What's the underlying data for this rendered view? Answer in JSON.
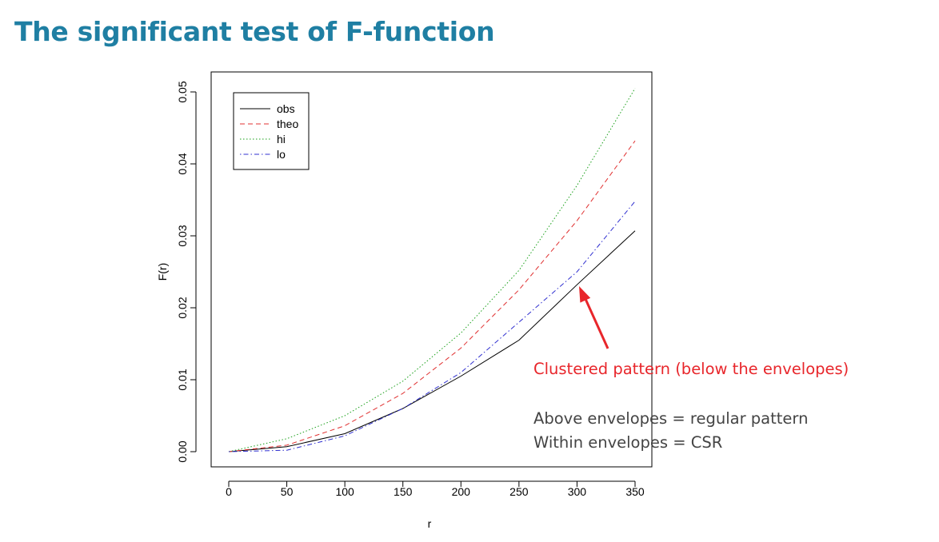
{
  "slide": {
    "title": "The significant test of F-function"
  },
  "annotations": {
    "clustered": "Clustered pattern (below the envelopes)",
    "clustered_color": "#e8262b",
    "regular": "Above envelopes = regular pattern",
    "csr": "Within envelopes = CSR",
    "text_color": "#444444",
    "arrow_color": "#e8262b"
  },
  "chart_data": {
    "type": "line",
    "title": "",
    "xlabel": "r",
    "ylabel": "F(r)",
    "xlim": [
      0,
      350
    ],
    "ylim": [
      0,
      0.05
    ],
    "x_ticks": [
      0,
      50,
      100,
      150,
      200,
      250,
      300,
      350
    ],
    "y_ticks": [
      0.0,
      0.01,
      0.02,
      0.03,
      0.04,
      0.05
    ],
    "y_tick_labels": [
      "0.00",
      "0.01",
      "0.02",
      "0.03",
      "0.04",
      "0.05"
    ],
    "legend_position": "top-left",
    "x": [
      0,
      50,
      100,
      150,
      200,
      250,
      300,
      350
    ],
    "series": [
      {
        "name": "obs",
        "color": "#000000",
        "dash": "solid",
        "values": [
          0.0,
          0.0007,
          0.0025,
          0.006,
          0.0105,
          0.0155,
          0.0232,
          0.0307
        ]
      },
      {
        "name": "theo",
        "color": "#e03030",
        "dash": "dashed",
        "values": [
          0.0,
          0.0009,
          0.0036,
          0.0081,
          0.0144,
          0.0225,
          0.0321,
          0.0432
        ]
      },
      {
        "name": "hi",
        "color": "#1aa01a",
        "dash": "dotted",
        "values": [
          0.0,
          0.0018,
          0.005,
          0.0098,
          0.0165,
          0.0252,
          0.037,
          0.0505
        ]
      },
      {
        "name": "lo",
        "color": "#3030d0",
        "dash": "dotdash",
        "values": [
          0.0,
          0.0002,
          0.0022,
          0.006,
          0.011,
          0.018,
          0.025,
          0.0348
        ]
      }
    ]
  }
}
